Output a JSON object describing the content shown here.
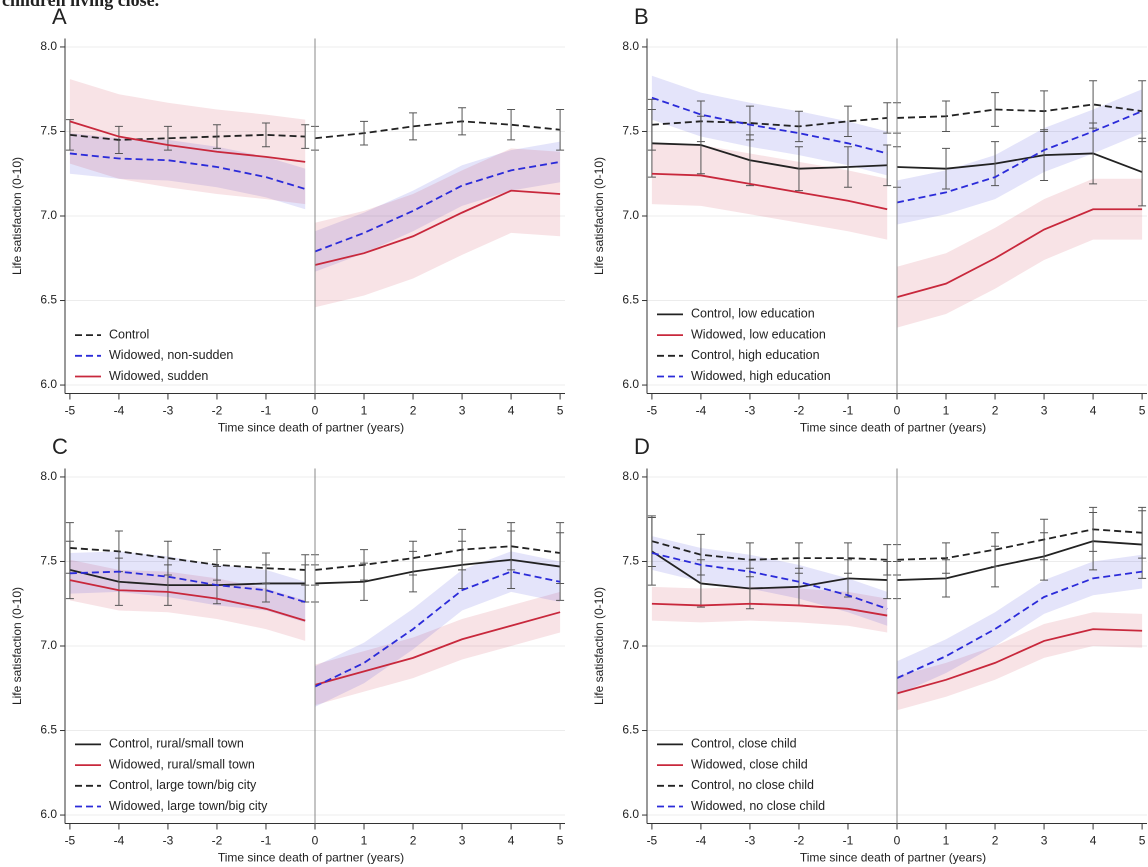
{
  "caption_fragment": "children living close.",
  "chart_data": [
    {
      "type": "line",
      "panel_label": "A",
      "xlabel": "Time since death of partner (years)",
      "ylabel": "Life satisfaction (0-10)",
      "x": [
        -5,
        -4,
        -3,
        -2,
        -1,
        -0.2,
        -0.1,
        0,
        1,
        2,
        3,
        4,
        5
      ],
      "xlim": [
        -5.1,
        5.1
      ],
      "xticks": [
        -5,
        -4,
        -3,
        -2,
        -1,
        0,
        1,
        2,
        3,
        4,
        5
      ],
      "ylim": [
        5.95,
        8.05
      ],
      "yticks": [
        {
          "value": 6,
          "label": "6.0"
        },
        {
          "value": 6.5,
          "label": "6.5"
        },
        {
          "value": 7,
          "label": "7.0"
        },
        {
          "value": 7.5,
          "label": "7.5"
        },
        {
          "value": 8,
          "label": "8.0"
        }
      ],
      "vline": 0,
      "grid": true,
      "series": [
        {
          "name": "Control",
          "color": "#222222",
          "dash": "dashed",
          "values": [
            7.48,
            7.45,
            7.46,
            7.47,
            7.48,
            7.47,
            null,
            7.46,
            7.49,
            7.53,
            7.56,
            7.54,
            7.51
          ],
          "error": [
            0.09,
            0.08,
            0.07,
            0.07,
            0.07,
            0.07,
            null,
            0.07,
            0.07,
            0.08,
            0.08,
            0.09,
            0.12
          ]
        },
        {
          "name": "Widowed, non-sudden",
          "color": "#2b2bd9",
          "dash": "dashed",
          "values": [
            7.37,
            7.34,
            7.33,
            7.29,
            7.23,
            7.16,
            null,
            6.79,
            6.9,
            7.03,
            7.18,
            7.27,
            7.32
          ],
          "lower": [
            7.25,
            7.22,
            7.21,
            7.17,
            7.11,
            7.04,
            null,
            6.67,
            6.78,
            6.91,
            7.06,
            7.15,
            7.2
          ],
          "upper": [
            7.49,
            7.46,
            7.45,
            7.41,
            7.35,
            7.28,
            null,
            6.91,
            7.02,
            7.15,
            7.3,
            7.39,
            7.44
          ]
        },
        {
          "name": "Widowed, sudden",
          "color": "#c8283c",
          "dash": "solid",
          "values": [
            7.56,
            7.47,
            7.42,
            7.38,
            7.35,
            7.32,
            null,
            6.71,
            6.78,
            6.88,
            7.02,
            7.15,
            7.13
          ],
          "lower": [
            7.31,
            7.22,
            7.17,
            7.13,
            7.1,
            7.07,
            null,
            6.46,
            6.53,
            6.63,
            6.77,
            6.9,
            6.88
          ],
          "upper": [
            7.81,
            7.72,
            7.67,
            7.63,
            7.6,
            7.57,
            null,
            6.96,
            7.03,
            7.13,
            7.27,
            7.4,
            7.38
          ]
        }
      ]
    },
    {
      "type": "line",
      "panel_label": "B",
      "xlabel": "Time since death of partner (years)",
      "ylabel": "Life satisfaction (0-10)",
      "x": [
        -5,
        -4,
        -3,
        -2,
        -1,
        -0.2,
        -0.1,
        0,
        1,
        2,
        3,
        4,
        5
      ],
      "xlim": [
        -5.1,
        5.1
      ],
      "xticks": [
        -5,
        -4,
        -3,
        -2,
        -1,
        0,
        1,
        2,
        3,
        4,
        5
      ],
      "ylim": [
        5.95,
        8.05
      ],
      "yticks": [
        {
          "value": 6,
          "label": "6.0"
        },
        {
          "value": 6.5,
          "label": "6.5"
        },
        {
          "value": 7,
          "label": "7.0"
        },
        {
          "value": 7.5,
          "label": "7.5"
        },
        {
          "value": 8,
          "label": "8.0"
        }
      ],
      "vline": 0,
      "grid": true,
      "series": [
        {
          "name": "Control, low education",
          "color": "#222222",
          "dash": "solid",
          "values": [
            7.43,
            7.42,
            7.33,
            7.28,
            7.29,
            7.3,
            null,
            7.29,
            7.28,
            7.31,
            7.36,
            7.37,
            7.26
          ],
          "error": [
            0.2,
            0.17,
            0.15,
            0.13,
            0.12,
            0.12,
            null,
            0.12,
            0.12,
            0.13,
            0.15,
            0.18,
            0.2
          ]
        },
        {
          "name": "Widowed, low education",
          "color": "#c8283c",
          "dash": "solid",
          "values": [
            7.25,
            7.24,
            7.19,
            7.14,
            7.09,
            7.04,
            null,
            6.52,
            6.6,
            6.75,
            6.92,
            7.04,
            7.04
          ],
          "lower": [
            7.07,
            7.06,
            7.01,
            6.96,
            6.91,
            6.86,
            null,
            6.34,
            6.42,
            6.57,
            6.74,
            6.86,
            6.86
          ],
          "upper": [
            7.43,
            7.42,
            7.37,
            7.32,
            7.27,
            7.22,
            null,
            6.7,
            6.78,
            6.93,
            7.1,
            7.22,
            7.22
          ]
        },
        {
          "name": "Control, high education",
          "color": "#222222",
          "dash": "dashed",
          "values": [
            7.54,
            7.56,
            7.55,
            7.53,
            7.56,
            7.58,
            null,
            7.58,
            7.59,
            7.63,
            7.62,
            7.66,
            7.62
          ],
          "error": [
            0.15,
            0.12,
            0.1,
            0.09,
            0.09,
            0.09,
            null,
            0.09,
            0.09,
            0.1,
            0.12,
            0.14,
            0.18
          ]
        },
        {
          "name": "Widowed, high education",
          "color": "#2b2bd9",
          "dash": "dashed",
          "values": [
            7.7,
            7.6,
            7.54,
            7.49,
            7.43,
            7.37,
            null,
            7.08,
            7.14,
            7.23,
            7.39,
            7.5,
            7.62
          ],
          "lower": [
            7.57,
            7.47,
            7.41,
            7.36,
            7.3,
            7.24,
            null,
            6.95,
            7.01,
            7.1,
            7.26,
            7.37,
            7.49
          ],
          "upper": [
            7.83,
            7.73,
            7.67,
            7.62,
            7.56,
            7.5,
            null,
            7.21,
            7.27,
            7.36,
            7.52,
            7.63,
            7.75
          ]
        }
      ]
    },
    {
      "type": "line",
      "panel_label": "C",
      "xlabel": "Time since death of partner (years)",
      "ylabel": "Life satisfaction (0-10)",
      "x": [
        -5,
        -4,
        -3,
        -2,
        -1,
        -0.2,
        -0.1,
        0,
        1,
        2,
        3,
        4,
        5
      ],
      "xlim": [
        -5.1,
        5.1
      ],
      "xticks": [
        -5,
        -4,
        -3,
        -2,
        -1,
        0,
        1,
        2,
        3,
        4,
        5
      ],
      "ylim": [
        5.95,
        8.05
      ],
      "yticks": [
        {
          "value": 6,
          "label": "6.0"
        },
        {
          "value": 6.5,
          "label": "6.5"
        },
        {
          "value": 7,
          "label": "7.0"
        },
        {
          "value": 7.5,
          "label": "7.5"
        },
        {
          "value": 8,
          "label": "8.0"
        }
      ],
      "vline": 0,
      "grid": true,
      "series": [
        {
          "name": "Control, rural/small town",
          "color": "#222222",
          "dash": "solid",
          "values": [
            7.45,
            7.38,
            7.36,
            7.36,
            7.37,
            7.37,
            null,
            7.37,
            7.38,
            7.44,
            7.48,
            7.51,
            7.47
          ],
          "error": [
            0.17,
            0.14,
            0.12,
            0.11,
            0.11,
            0.11,
            null,
            0.11,
            0.11,
            0.12,
            0.14,
            0.17,
            0.2
          ]
        },
        {
          "name": "Widowed, rural/small town",
          "color": "#c8283c",
          "dash": "solid",
          "values": [
            7.39,
            7.33,
            7.32,
            7.28,
            7.22,
            7.15,
            null,
            6.77,
            6.85,
            6.93,
            7.04,
            7.12,
            7.2
          ],
          "lower": [
            7.27,
            7.21,
            7.2,
            7.16,
            7.1,
            7.03,
            null,
            6.65,
            6.73,
            6.81,
            6.92,
            7.0,
            7.08
          ],
          "upper": [
            7.51,
            7.45,
            7.44,
            7.4,
            7.34,
            7.27,
            null,
            6.89,
            6.97,
            7.05,
            7.16,
            7.24,
            7.32
          ]
        },
        {
          "name": "Control, large town/big city",
          "color": "#222222",
          "dash": "dashed",
          "values": [
            7.58,
            7.56,
            7.52,
            7.48,
            7.46,
            7.45,
            null,
            7.45,
            7.48,
            7.52,
            7.57,
            7.59,
            7.55
          ],
          "error": [
            0.15,
            0.12,
            0.1,
            0.09,
            0.09,
            0.09,
            null,
            0.09,
            0.09,
            0.1,
            0.12,
            0.14,
            0.18
          ]
        },
        {
          "name": "Widowed, large town/big city",
          "color": "#2b2bd9",
          "dash": "dashed",
          "values": [
            7.43,
            7.44,
            7.41,
            7.36,
            7.33,
            7.26,
            null,
            6.76,
            6.9,
            7.1,
            7.33,
            7.44,
            7.38
          ],
          "lower": [
            7.31,
            7.32,
            7.29,
            7.24,
            7.21,
            7.14,
            null,
            6.64,
            6.78,
            6.98,
            7.21,
            7.32,
            7.26
          ],
          "upper": [
            7.55,
            7.56,
            7.53,
            7.48,
            7.45,
            7.38,
            null,
            6.88,
            7.02,
            7.22,
            7.45,
            7.56,
            7.5
          ]
        }
      ]
    },
    {
      "type": "line",
      "panel_label": "D",
      "xlabel": "Time since death of partner (years)",
      "ylabel": "Life satisfaction (0-10)",
      "x": [
        -5,
        -4,
        -3,
        -2,
        -1,
        -0.2,
        -0.1,
        0,
        1,
        2,
        3,
        4,
        5
      ],
      "xlim": [
        -5.1,
        5.1
      ],
      "xticks": [
        -5,
        -4,
        -3,
        -2,
        -1,
        0,
        1,
        2,
        3,
        4,
        5
      ],
      "ylim": [
        5.95,
        8.05
      ],
      "yticks": [
        {
          "value": 6,
          "label": "6.0"
        },
        {
          "value": 6.5,
          "label": "6.5"
        },
        {
          "value": 7,
          "label": "7.0"
        },
        {
          "value": 7.5,
          "label": "7.5"
        },
        {
          "value": 8,
          "label": "8.0"
        }
      ],
      "vline": 0,
      "grid": true,
      "series": [
        {
          "name": "Control, close child",
          "color": "#222222",
          "dash": "solid",
          "values": [
            7.56,
            7.37,
            7.34,
            7.35,
            7.4,
            7.39,
            null,
            7.39,
            7.4,
            7.47,
            7.53,
            7.62,
            7.6
          ],
          "error": [
            0.2,
            0.14,
            0.12,
            0.11,
            0.11,
            0.11,
            null,
            0.11,
            0.11,
            0.12,
            0.14,
            0.17,
            0.2
          ]
        },
        {
          "name": "Widowed, close child",
          "color": "#c8283c",
          "dash": "solid",
          "values": [
            7.25,
            7.24,
            7.25,
            7.24,
            7.22,
            7.18,
            null,
            6.72,
            6.8,
            6.9,
            7.03,
            7.1,
            7.09
          ],
          "lower": [
            7.15,
            7.14,
            7.15,
            7.14,
            7.12,
            7.08,
            null,
            6.62,
            6.7,
            6.8,
            6.93,
            7.0,
            6.99
          ],
          "upper": [
            7.35,
            7.34,
            7.35,
            7.34,
            7.32,
            7.28,
            null,
            6.82,
            6.9,
            7.0,
            7.13,
            7.2,
            7.19
          ]
        },
        {
          "name": "Control, no close child",
          "color": "#222222",
          "dash": "dashed",
          "values": [
            7.62,
            7.54,
            7.51,
            7.52,
            7.52,
            7.51,
            null,
            7.51,
            7.52,
            7.57,
            7.63,
            7.69,
            7.67
          ],
          "error": [
            0.15,
            0.12,
            0.1,
            0.09,
            0.09,
            0.09,
            null,
            0.09,
            0.09,
            0.1,
            0.12,
            0.13,
            0.15
          ]
        },
        {
          "name": "Widowed, no close child",
          "color": "#2b2bd9",
          "dash": "dashed",
          "values": [
            7.55,
            7.48,
            7.44,
            7.38,
            7.3,
            7.22,
            null,
            6.81,
            6.94,
            7.1,
            7.29,
            7.4,
            7.44
          ],
          "lower": [
            7.45,
            7.38,
            7.34,
            7.28,
            7.2,
            7.12,
            null,
            6.71,
            6.84,
            7.0,
            7.19,
            7.3,
            7.34
          ],
          "upper": [
            7.65,
            7.58,
            7.54,
            7.48,
            7.4,
            7.32,
            null,
            6.91,
            7.04,
            7.2,
            7.39,
            7.5,
            7.54
          ]
        }
      ]
    }
  ]
}
